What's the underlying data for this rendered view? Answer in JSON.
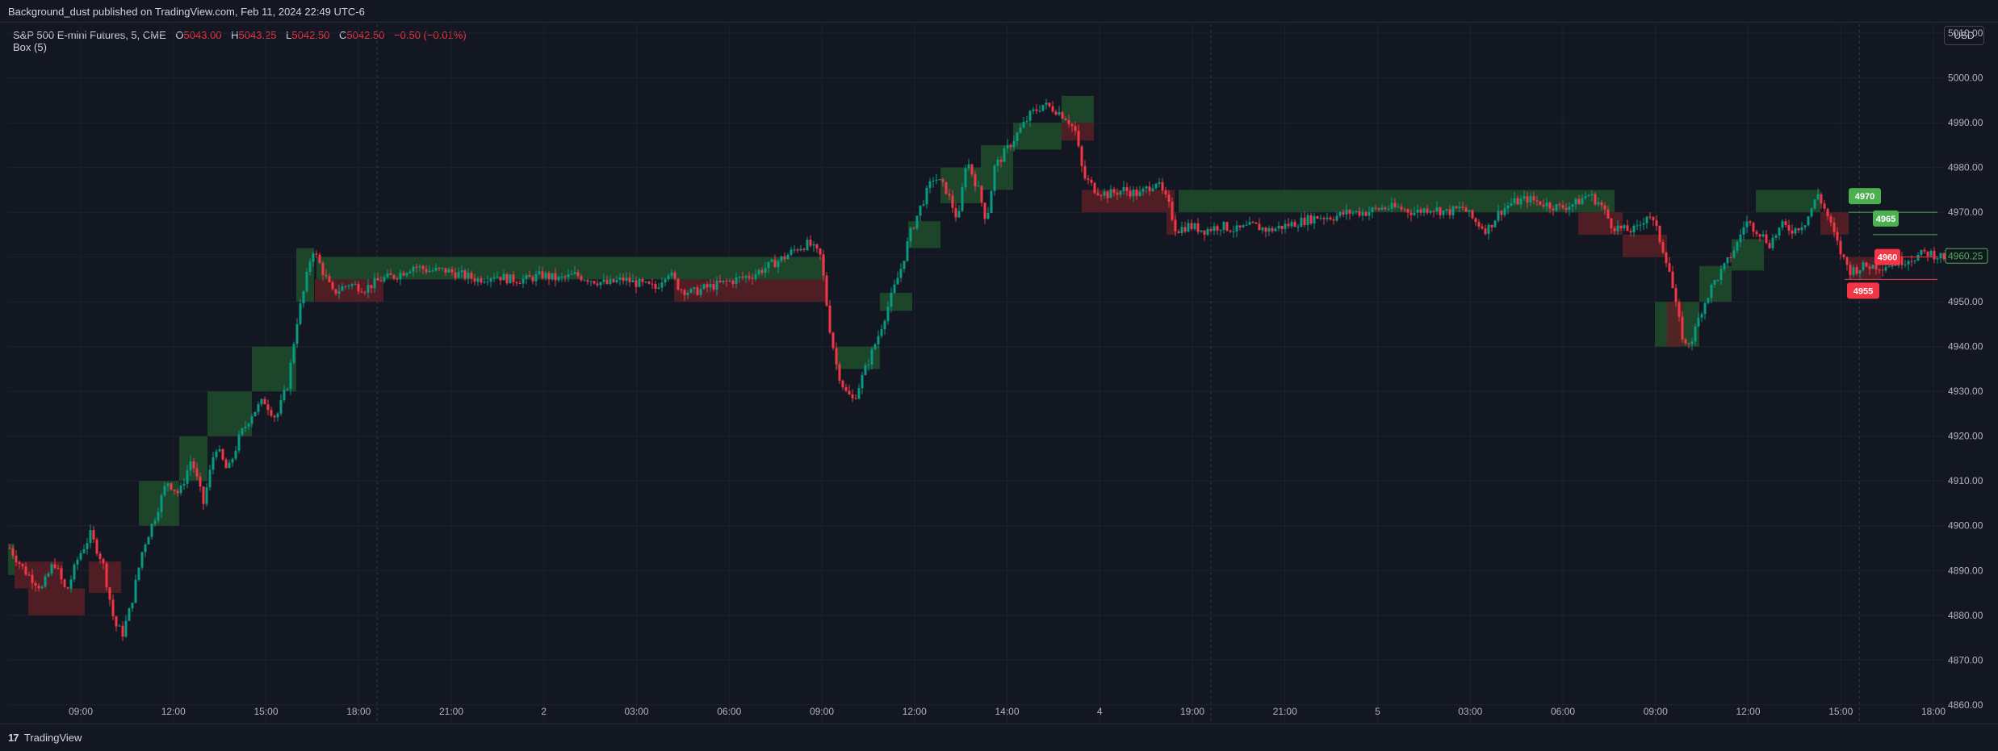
{
  "header": {
    "text": "Background_dust published on TradingView.com, Feb 11, 2024 22:49 UTC-6"
  },
  "legend": {
    "symbol": "S&P 500 E-mini Futures, 5, CME",
    "open_label": "O",
    "open": "5043.00",
    "high_label": "H",
    "high": "5043.25",
    "low_label": "L",
    "low": "5042.50",
    "close_label": "C",
    "close": "5042.50",
    "change": "−0.50 (−0.01%)"
  },
  "indicator": {
    "label": "Box (5)"
  },
  "currency_button": "USD",
  "brand": {
    "name": "TradingView",
    "logo_glyph": "17"
  },
  "colors": {
    "background": "#131722",
    "bull": "#089981",
    "bear": "#f23645",
    "bull_box": "#1e4d2b",
    "bear_box": "#5b1e25"
  },
  "chart_data": {
    "type": "candlestick",
    "y_ticks": [
      "5010.00",
      "5000.00",
      "4990.00",
      "4980.00",
      "4970.00",
      "4960.00",
      "4950.00",
      "4940.00",
      "4930.00",
      "4920.00",
      "4910.00",
      "4900.00",
      "4890.00",
      "4880.00",
      "4870.00",
      "4860.00"
    ],
    "ylim": [
      4856,
      5012
    ],
    "x_ticks": [
      "09:00",
      "12:00",
      "15:00",
      "18:00",
      "21:00",
      "2",
      "03:00",
      "06:00",
      "09:00",
      "12:00",
      "14:00",
      "4",
      "19:00",
      "21:00",
      "5",
      "03:00",
      "06:00",
      "09:00",
      "12:00",
      "15:00",
      "18:00"
    ],
    "price_path": [
      [
        0,
        4895
      ],
      [
        18,
        4890
      ],
      [
        40,
        4886
      ],
      [
        55,
        4892
      ],
      [
        70,
        4885
      ],
      [
        85,
        4893
      ],
      [
        100,
        4898
      ],
      [
        115,
        4892
      ],
      [
        130,
        4878
      ],
      [
        140,
        4876
      ],
      [
        150,
        4882
      ],
      [
        165,
        4895
      ],
      [
        180,
        4902
      ],
      [
        195,
        4910
      ],
      [
        210,
        4907
      ],
      [
        225,
        4915
      ],
      [
        240,
        4905
      ],
      [
        255,
        4918
      ],
      [
        270,
        4912
      ],
      [
        285,
        4920
      ],
      [
        300,
        4925
      ],
      [
        315,
        4928
      ],
      [
        330,
        4924
      ],
      [
        345,
        4932
      ],
      [
        355,
        4945
      ],
      [
        365,
        4953
      ],
      [
        375,
        4962
      ],
      [
        385,
        4958
      ],
      [
        400,
        4952
      ],
      [
        420,
        4954
      ],
      [
        440,
        4953
      ],
      [
        460,
        4955
      ],
      [
        480,
        4956
      ],
      [
        500,
        4958
      ],
      [
        520,
        4957
      ],
      [
        540,
        4957
      ],
      [
        560,
        4956
      ],
      [
        580,
        4955
      ],
      [
        600,
        4956
      ],
      [
        620,
        4955
      ],
      [
        640,
        4955
      ],
      [
        660,
        4956
      ],
      [
        680,
        4955
      ],
      [
        700,
        4956
      ],
      [
        720,
        4955
      ],
      [
        740,
        4954
      ],
      [
        760,
        4955
      ],
      [
        780,
        4954
      ],
      [
        800,
        4953
      ],
      [
        815,
        4957
      ],
      [
        830,
        4953
      ],
      [
        845,
        4952
      ],
      [
        860,
        4953
      ],
      [
        880,
        4954
      ],
      [
        900,
        4955
      ],
      [
        920,
        4956
      ],
      [
        940,
        4958
      ],
      [
        960,
        4960
      ],
      [
        975,
        4962
      ],
      [
        990,
        4963
      ],
      [
        1005,
        4960
      ],
      [
        1015,
        4945
      ],
      [
        1025,
        4935
      ],
      [
        1035,
        4930
      ],
      [
        1045,
        4928
      ],
      [
        1060,
        4935
      ],
      [
        1075,
        4942
      ],
      [
        1090,
        4950
      ],
      [
        1105,
        4958
      ],
      [
        1115,
        4965
      ],
      [
        1130,
        4972
      ],
      [
        1145,
        4978
      ],
      [
        1160,
        4975
      ],
      [
        1175,
        4968
      ],
      [
        1185,
        4982
      ],
      [
        1200,
        4975
      ],
      [
        1210,
        4968
      ],
      [
        1220,
        4980
      ],
      [
        1235,
        4984
      ],
      [
        1250,
        4988
      ],
      [
        1265,
        4992
      ],
      [
        1280,
        4994
      ],
      [
        1295,
        4993
      ],
      [
        1310,
        4991
      ],
      [
        1320,
        4988
      ],
      [
        1330,
        4978
      ],
      [
        1345,
        4975
      ],
      [
        1360,
        4974
      ],
      [
        1380,
        4975
      ],
      [
        1400,
        4974
      ],
      [
        1420,
        4977
      ],
      [
        1435,
        4972
      ],
      [
        1445,
        4966
      ],
      [
        1460,
        4967
      ],
      [
        1480,
        4966
      ],
      [
        1500,
        4967
      ],
      [
        1520,
        4966
      ],
      [
        1540,
        4967
      ],
      [
        1560,
        4966
      ],
      [
        1580,
        4967
      ],
      [
        1600,
        4968
      ],
      [
        1620,
        4969
      ],
      [
        1640,
        4969
      ],
      [
        1660,
        4970
      ],
      [
        1680,
        4970
      ],
      [
        1700,
        4971
      ],
      [
        1720,
        4971
      ],
      [
        1740,
        4970
      ],
      [
        1760,
        4971
      ],
      [
        1780,
        4970
      ],
      [
        1800,
        4971
      ],
      [
        1815,
        4968
      ],
      [
        1830,
        4966
      ],
      [
        1845,
        4970
      ],
      [
        1860,
        4972
      ],
      [
        1880,
        4973
      ],
      [
        1900,
        4972
      ],
      [
        1920,
        4971
      ],
      [
        1940,
        4972
      ],
      [
        1955,
        4974
      ],
      [
        1970,
        4972
      ],
      [
        1985,
        4967
      ],
      [
        2000,
        4966
      ],
      [
        2015,
        4966
      ],
      [
        2030,
        4970
      ],
      [
        2040,
        4966
      ],
      [
        2055,
        4958
      ],
      [
        2065,
        4948
      ],
      [
        2075,
        4940
      ],
      [
        2085,
        4942
      ],
      [
        2095,
        4948
      ],
      [
        2110,
        4954
      ],
      [
        2125,
        4958
      ],
      [
        2140,
        4963
      ],
      [
        2150,
        4968
      ],
      [
        2165,
        4966
      ],
      [
        2180,
        4963
      ],
      [
        2195,
        4967
      ],
      [
        2210,
        4966
      ],
      [
        2225,
        4968
      ],
      [
        2240,
        4974
      ],
      [
        2250,
        4970
      ],
      [
        2260,
        4965
      ],
      [
        2270,
        4960
      ],
      [
        2280,
        4957
      ],
      [
        2300,
        4958
      ],
      [
        2320,
        4958
      ],
      [
        2340,
        4959
      ],
      [
        2360,
        4960
      ],
      [
        2375,
        4961
      ],
      [
        2395,
        4960
      ],
      [
        2405,
        4960
      ]
    ],
    "bull_boxes": [
      [
        0,
        4889,
        8,
        4896
      ],
      [
        162,
        4900,
        50,
        4910
      ],
      [
        212,
        4910,
        35,
        4920
      ],
      [
        247,
        4920,
        55,
        4930
      ],
      [
        302,
        4930,
        55,
        4940
      ],
      [
        357,
        4950,
        22,
        4962
      ],
      [
        382,
        4955,
        500,
        4960
      ],
      [
        882,
        4955,
        130,
        4960
      ],
      [
        1025,
        4935,
        55,
        4940
      ],
      [
        1080,
        4948,
        40,
        4952
      ],
      [
        1115,
        4962,
        40,
        4968
      ],
      [
        1155,
        4972,
        50,
        4980
      ],
      [
        1205,
        4975,
        40,
        4985
      ],
      [
        1245,
        4984,
        60,
        4990
      ],
      [
        1305,
        4990,
        40,
        4996
      ],
      [
        1450,
        4970,
        540,
        4975
      ],
      [
        2040,
        4940,
        55,
        4950
      ],
      [
        2095,
        4950,
        40,
        4958
      ],
      [
        2135,
        4957,
        40,
        4964
      ],
      [
        2165,
        4970,
        80,
        4975
      ]
    ],
    "bear_boxes": [
      [
        8,
        4886,
        60,
        4892
      ],
      [
        25,
        4880,
        70,
        4886
      ],
      [
        100,
        4885,
        40,
        4892
      ],
      [
        380,
        4950,
        85,
        4955
      ],
      [
        825,
        4950,
        190,
        4955
      ],
      [
        1305,
        4986,
        40,
        4990
      ],
      [
        1330,
        4970,
        115,
        4975
      ],
      [
        1435,
        4965,
        12,
        4970
      ],
      [
        1945,
        4965,
        55,
        4970
      ],
      [
        2000,
        4960,
        55,
        4965
      ],
      [
        2055,
        4940,
        20,
        4950
      ],
      [
        2245,
        4965,
        35,
        4970
      ],
      [
        2280,
        4955,
        40,
        4960
      ]
    ],
    "level_lines": [
      {
        "y": 4970,
        "label": "4970",
        "color": "#4caf50"
      },
      {
        "y": 4965,
        "label": "4965",
        "color": "#4caf50"
      },
      {
        "y": 4960,
        "label": "4960",
        "color": "#f23645"
      },
      {
        "y": 4955,
        "label": "4955",
        "color": "#f23645"
      }
    ],
    "last_price": "4960.25"
  }
}
